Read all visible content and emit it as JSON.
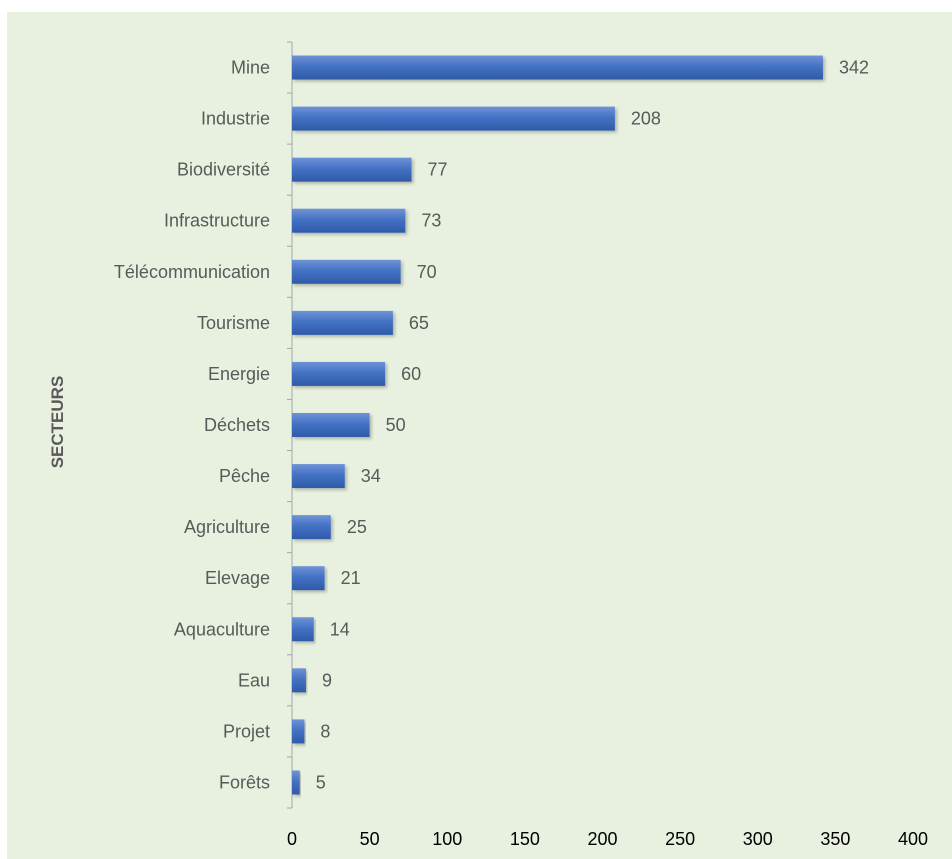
{
  "chart_data": {
    "type": "bar",
    "orientation": "horizontal",
    "categories": [
      "Mine",
      "Industrie",
      "Biodiversité",
      "Infrastructure",
      "Télécommunication",
      "Tourisme",
      "Energie",
      "Déchets",
      "Pêche",
      "Agriculture",
      "Elevage",
      "Aquaculture",
      "Eau",
      "Projet",
      "Forêts"
    ],
    "values": [
      342,
      208,
      77,
      73,
      70,
      65,
      60,
      50,
      34,
      25,
      21,
      14,
      9,
      8,
      5
    ],
    "data_labels": [
      "342",
      "208",
      "77",
      "73",
      "70",
      "65",
      "60",
      "50",
      "34",
      "25",
      "21",
      "14",
      "9",
      "8",
      "5"
    ],
    "ylabel": "SECTEURS",
    "xlim": [
      0,
      400
    ],
    "x_ticks": [
      "0",
      "50",
      "100",
      "150",
      "200",
      "250",
      "300",
      "350",
      "400"
    ],
    "grid": false,
    "bar_color": "#4472c4",
    "background_color": "#e8f1df"
  }
}
